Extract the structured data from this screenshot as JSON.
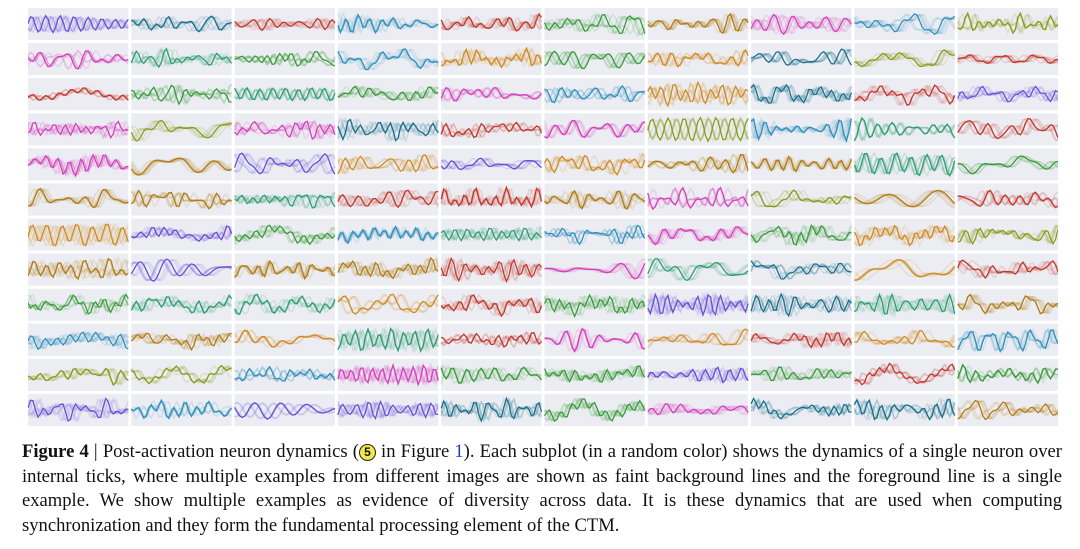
{
  "figure": {
    "label": "Figure 4",
    "rows": 12,
    "cols": 10,
    "palette": [
      "#2f8fb8",
      "#2e9e6e",
      "#8a9a1a",
      "#d440b8",
      "#c0392b",
      "#b07a15",
      "#6a4fd6",
      "#1b6f8a",
      "#d08a20",
      "#3a9a3a"
    ]
  },
  "caption": {
    "separator": " | ",
    "text_before": "Post-activation neuron dynamics (",
    "circled_number": "5",
    "in_text": " in Figure ",
    "figure_ref": "1",
    "text_after": "). Each subplot (in a random color) shows the dynamics of a single neuron over internal ticks, where multiple examples from different images are shown as faint background lines and the foreground line is a single example. We show multiple examples as evidence of diversity across data. It is these dynamics that are used when computing synchronization and they form the fundamental processing element of the CTM."
  }
}
